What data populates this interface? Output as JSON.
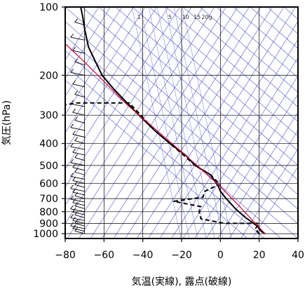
{
  "chart_data": {
    "type": "line",
    "subtype": "skew-T log-P sounding",
    "xlabel": "気温(実線), 露点(破線)",
    "ylabel": "気圧(hPa)",
    "xlim": [
      -80,
      40
    ],
    "ylim": [
      1050,
      100
    ],
    "y_scale": "log",
    "grid": true,
    "x_ticks": [
      "−80",
      "−60",
      "−40",
      "−20",
      "0",
      "20",
      "40"
    ],
    "x_tick_values": [
      -80,
      -60,
      -40,
      -20,
      0,
      20,
      40
    ],
    "y_ticks": [
      "100",
      "200",
      "300",
      "400",
      "500",
      "600",
      "700",
      "800",
      "900",
      "1000"
    ],
    "y_tick_values": [
      100,
      200,
      300,
      400,
      500,
      600,
      700,
      800,
      900,
      1000
    ],
    "mixing_ratio_labels": [
      {
        "text": "1",
        "value": 1
      },
      {
        "text": "5",
        "value": 5
      },
      {
        "text": "10",
        "value": 10
      },
      {
        "text": "15",
        "value": 15
      },
      {
        "text": "20g",
        "value": 20
      }
    ],
    "colors": {
      "temperature": "#000000",
      "dewpoint": "#000000",
      "parcel": "#cc0033",
      "background_lines": "#3333cc",
      "grid": "#000000"
    },
    "series": [
      {
        "style": "solid",
        "x": [
          23,
          21,
          19,
          13,
          8,
          3,
          0,
          -1,
          -5,
          -13,
          -18,
          -26,
          -34,
          -42,
          -55,
          -61,
          -65,
          -68,
          -70,
          -71,
          -72
        ],
        "y": [
          1000,
          975,
          925,
          850,
          780,
          700,
          650,
          620,
          550,
          500,
          450,
          400,
          350,
          300,
          230,
          200,
          170,
          150,
          125,
          110,
          100
        ]
      },
      {
        "style": "dashed",
        "x": [
          20,
          18,
          20,
          2,
          -10,
          -11,
          -10,
          -24,
          -9,
          -8,
          -3,
          0,
          -5,
          -13,
          -19,
          -26,
          -34,
          -41,
          -47,
          -74,
          -80
        ],
        "y": [
          1000,
          950,
          900,
          900,
          860,
          800,
          760,
          720,
          690,
          650,
          620,
          610,
          550,
          500,
          450,
          400,
          350,
          300,
          265,
          265,
          270
        ]
      },
      {
        "style": "solid",
        "color": "#cc0033",
        "x": [
          23,
          18,
          10,
          0,
          -12,
          -28,
          -48,
          -70,
          -82
        ],
        "y": [
          1000,
          900,
          760,
          620,
          500,
          380,
          270,
          175,
          140
        ]
      }
    ],
    "wind_barbs": {
      "x": -70,
      "y": [
        1000,
        975,
        950,
        925,
        900,
        875,
        850,
        825,
        800,
        775,
        750,
        725,
        700,
        675,
        650,
        625,
        600,
        575,
        550,
        525,
        500,
        475,
        450,
        425,
        400,
        375,
        350,
        325,
        300,
        275,
        250,
        225,
        200,
        180,
        160,
        140,
        120,
        100
      ]
    }
  }
}
